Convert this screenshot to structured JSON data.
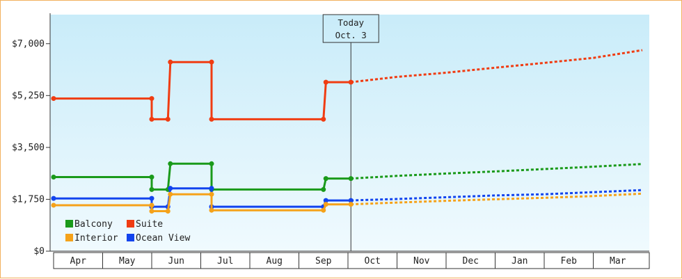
{
  "chart_data": {
    "type": "line",
    "title": "",
    "xlabel": "",
    "ylabel": "",
    "ylim": [
      0,
      7980
    ],
    "y_ticks": [
      {
        "value": 0,
        "label": "$0"
      },
      {
        "value": 1750,
        "label": "$1,750"
      },
      {
        "value": 3500,
        "label": "$3,500"
      },
      {
        "value": 5250,
        "label": "$5,250"
      },
      {
        "value": 7000,
        "label": "$7,000"
      }
    ],
    "months": [
      "Apr",
      "May",
      "Jun",
      "Jul",
      "Aug",
      "Sep",
      "Oct",
      "Nov",
      "Dec",
      "Jan",
      "Feb",
      "Mar"
    ],
    "x_unit": "months from start of Apr",
    "today": {
      "line1": "Today",
      "line2": "Oct. 3",
      "x": 6.06
    },
    "grid": false,
    "legend_position": "bottom-left",
    "series": [
      {
        "name": "Suite",
        "color": "#f03c12",
        "history": [
          [
            0,
            5150
          ],
          [
            2.0,
            5150
          ],
          [
            2.0,
            4450
          ],
          [
            2.33,
            4450
          ],
          [
            2.38,
            6380
          ],
          [
            3.22,
            6380
          ],
          [
            3.22,
            4450
          ],
          [
            5.5,
            4450
          ],
          [
            5.55,
            5700
          ],
          [
            6.06,
            5700
          ]
        ],
        "markers": [
          [
            0,
            5150
          ],
          [
            2.0,
            5150
          ],
          [
            2.0,
            4450
          ],
          [
            2.33,
            4450
          ],
          [
            2.38,
            6380
          ],
          [
            3.22,
            6380
          ],
          [
            3.22,
            4450
          ],
          [
            5.5,
            4450
          ],
          [
            5.55,
            5700
          ],
          [
            6.06,
            5700
          ]
        ],
        "forecast": [
          [
            6.06,
            5700
          ],
          [
            7.0,
            5880
          ],
          [
            8.0,
            6020
          ],
          [
            9.0,
            6190
          ],
          [
            10.0,
            6350
          ],
          [
            11.0,
            6520
          ],
          [
            12.0,
            6780
          ]
        ]
      },
      {
        "name": "Balcony",
        "color": "#1a9a1a",
        "history": [
          [
            0,
            2500
          ],
          [
            2.0,
            2500
          ],
          [
            2.0,
            2080
          ],
          [
            2.33,
            2080
          ],
          [
            2.38,
            2950
          ],
          [
            3.22,
            2950
          ],
          [
            3.22,
            2080
          ],
          [
            5.5,
            2080
          ],
          [
            5.55,
            2450
          ],
          [
            6.06,
            2450
          ]
        ],
        "markers": [
          [
            0,
            2500
          ],
          [
            2.0,
            2500
          ],
          [
            2.0,
            2080
          ],
          [
            2.33,
            2080
          ],
          [
            2.38,
            2950
          ],
          [
            3.22,
            2950
          ],
          [
            3.22,
            2080
          ],
          [
            5.5,
            2080
          ],
          [
            5.55,
            2450
          ],
          [
            6.06,
            2450
          ]
        ],
        "forecast": [
          [
            6.06,
            2450
          ],
          [
            7.0,
            2540
          ],
          [
            8.0,
            2620
          ],
          [
            9.0,
            2690
          ],
          [
            10.0,
            2770
          ],
          [
            11.0,
            2850
          ],
          [
            12.0,
            2940
          ]
        ]
      },
      {
        "name": "Ocean View",
        "color": "#1244ee",
        "history": [
          [
            0,
            1780
          ],
          [
            2.0,
            1780
          ],
          [
            2.0,
            1500
          ],
          [
            2.33,
            1500
          ],
          [
            2.38,
            2120
          ],
          [
            3.22,
            2120
          ],
          [
            3.22,
            1500
          ],
          [
            5.5,
            1500
          ],
          [
            5.55,
            1710
          ],
          [
            6.06,
            1710
          ]
        ],
        "markers": [
          [
            0,
            1780
          ],
          [
            2.0,
            1780
          ],
          [
            2.0,
            1500
          ],
          [
            2.33,
            1500
          ],
          [
            2.38,
            2120
          ],
          [
            3.22,
            2120
          ],
          [
            3.22,
            1500
          ],
          [
            5.5,
            1500
          ],
          [
            5.55,
            1710
          ],
          [
            6.06,
            1710
          ]
        ],
        "forecast": [
          [
            6.06,
            1710
          ],
          [
            7.0,
            1760
          ],
          [
            8.0,
            1820
          ],
          [
            9.0,
            1880
          ],
          [
            10.0,
            1920
          ],
          [
            11.0,
            1990
          ],
          [
            12.0,
            2060
          ]
        ]
      },
      {
        "name": "Interior",
        "color": "#f5a21a",
        "history": [
          [
            0,
            1550
          ],
          [
            2.0,
            1550
          ],
          [
            2.0,
            1350
          ],
          [
            2.33,
            1350
          ],
          [
            2.38,
            1920
          ],
          [
            3.22,
            1920
          ],
          [
            3.22,
            1380
          ],
          [
            5.5,
            1380
          ],
          [
            5.55,
            1580
          ],
          [
            6.06,
            1580
          ]
        ],
        "markers": [
          [
            0,
            1550
          ],
          [
            2.0,
            1550
          ],
          [
            2.0,
            1350
          ],
          [
            2.33,
            1350
          ],
          [
            2.38,
            1920
          ],
          [
            3.22,
            1920
          ],
          [
            3.22,
            1380
          ],
          [
            5.5,
            1380
          ],
          [
            5.55,
            1580
          ],
          [
            6.06,
            1580
          ]
        ],
        "forecast": [
          [
            6.06,
            1580
          ],
          [
            7.0,
            1640
          ],
          [
            8.0,
            1700
          ],
          [
            9.0,
            1750
          ],
          [
            10.0,
            1800
          ],
          [
            11.0,
            1860
          ],
          [
            12.0,
            1940
          ]
        ]
      }
    ],
    "legend": [
      {
        "name": "Balcony",
        "color": "#1a9a1a"
      },
      {
        "name": "Suite",
        "color": "#f03c12"
      },
      {
        "name": "Interior",
        "color": "#f5a21a"
      },
      {
        "name": "Ocean View",
        "color": "#1244ee"
      }
    ]
  }
}
